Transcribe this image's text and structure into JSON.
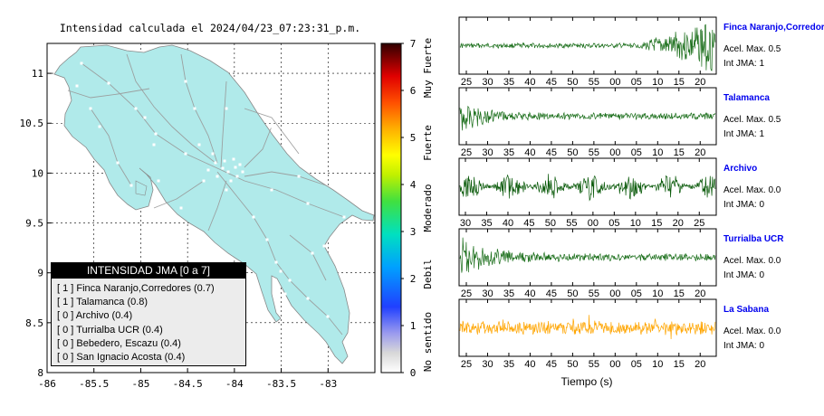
{
  "map": {
    "title": "Intensidad calculada el 2024/04/23_07:23:31_p.m.",
    "x_ticks": [
      "-86",
      "-85.5",
      "-85",
      "-84.5",
      "-84",
      "-83.5",
      "-83"
    ],
    "y_ticks": [
      "11",
      "10.5",
      "10",
      "9.5",
      "9",
      "8.5",
      "8"
    ],
    "xlim": [
      -86,
      -82.5
    ],
    "ylim": [
      8,
      11.3
    ],
    "land_color": "#b0eaea",
    "road_color": "#999999"
  },
  "colorbar": {
    "ticks": [
      "0",
      "1",
      "2",
      "3",
      "4",
      "5",
      "6",
      "7"
    ],
    "categories": [
      "No sentido",
      "Debil",
      "Moderado",
      "Fuerte",
      "Muy Fuerte"
    ]
  },
  "legend": {
    "title": "INTENSIDAD JMA [0 a 7]",
    "items": [
      "[ 1 ]  Finca Naranjo,Corredores (0.7)",
      "[ 1 ]  Talamanca (0.8)",
      "[ 0 ]  Archivo (0.4)",
      "[ 0 ]  Turrialba UCR (0.4)",
      "[ 0 ]  Bebedero, Escazu (0.4)",
      "[ 0 ]  San Ignacio Acosta (0.4)"
    ]
  },
  "stations": [
    {
      "name": "Finca Naranjo,Corredores",
      "acel": "Acel. Max. 0.5",
      "jma": "Int JMA: 1",
      "color": "#1a6e1a",
      "ticks": [
        "25",
        "30",
        "35",
        "40",
        "45",
        "50",
        "55",
        "00",
        "05",
        "10",
        "15",
        "20"
      ]
    },
    {
      "name": "Talamanca",
      "acel": "Acel. Max. 0.5",
      "jma": "Int JMA: 1",
      "color": "#1a6e1a",
      "ticks": [
        "25",
        "30",
        "35",
        "40",
        "45",
        "50",
        "55",
        "00",
        "05",
        "10",
        "15",
        "20"
      ]
    },
    {
      "name": "Archivo",
      "acel": "Acel. Max. 0.0",
      "jma": "Int JMA: 0",
      "color": "#0a5a0a",
      "ticks": [
        "30",
        "35",
        "40",
        "45",
        "50",
        "55",
        "00",
        "05",
        "10",
        "15",
        "20",
        "25"
      ]
    },
    {
      "name": "Turrialba UCR",
      "acel": "Acel. Max. 0.0",
      "jma": "Int JMA: 0",
      "color": "#1a6e1a",
      "ticks": [
        "25",
        "30",
        "35",
        "40",
        "45",
        "50",
        "55",
        "00",
        "05",
        "10",
        "15",
        "20"
      ]
    },
    {
      "name": "La Sabana",
      "acel": "Acel. Max. 0.0",
      "jma": "Int JMA: 0",
      "color": "#ffa500",
      "ticks": [
        "25",
        "30",
        "35",
        "40",
        "45",
        "50",
        "55",
        "00",
        "05",
        "10",
        "15",
        "20"
      ]
    }
  ],
  "waveform_xlabel": "Tiempo (s)"
}
